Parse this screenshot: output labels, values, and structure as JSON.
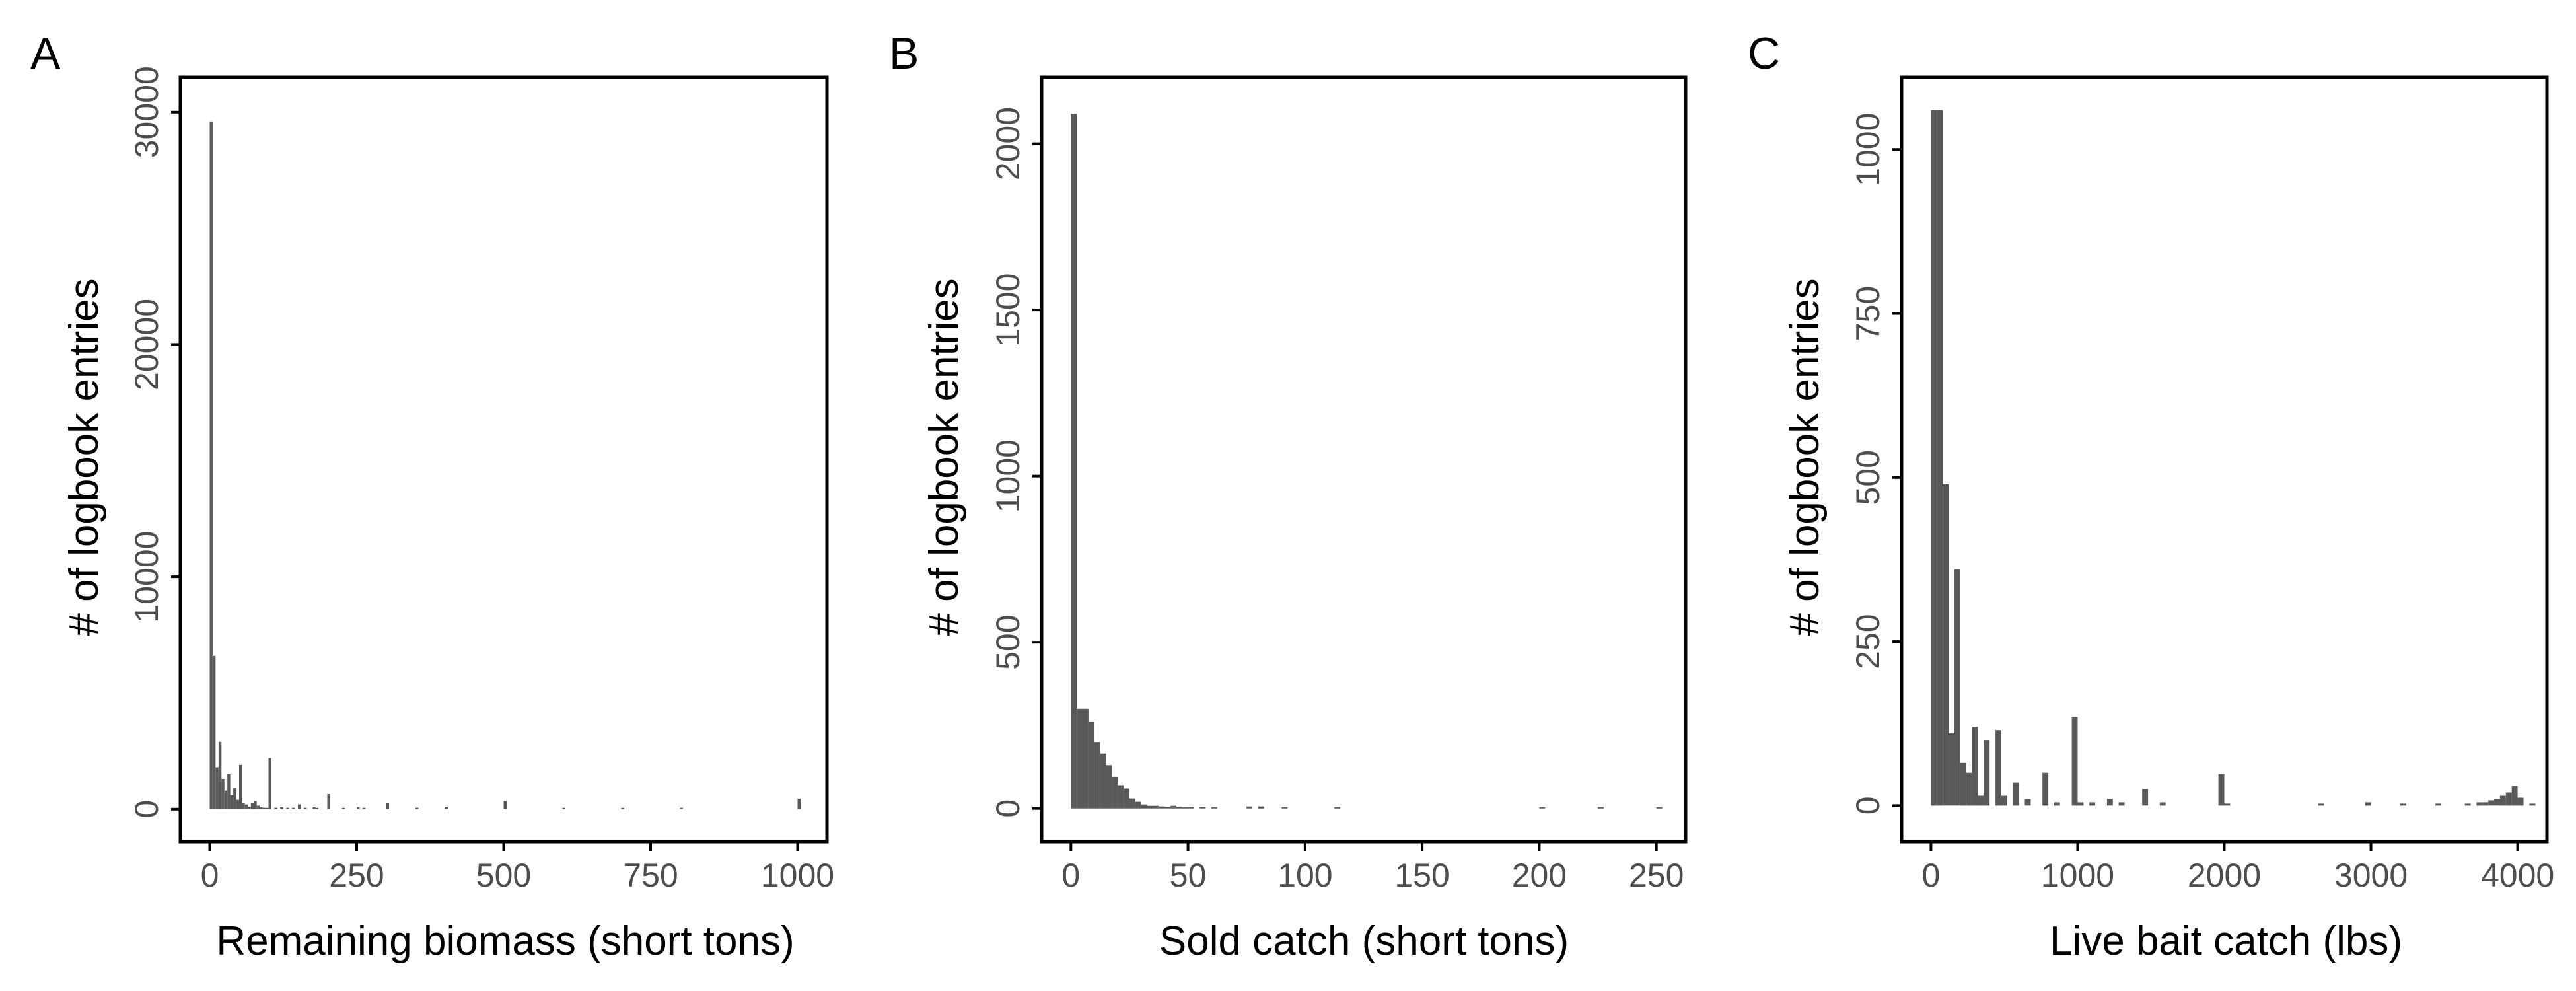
{
  "chart_data": [
    {
      "panel": "A",
      "type": "bar",
      "xlabel": "Remaining biomass (short tons)",
      "ylabel": "# of logbook entries",
      "xlim": [
        -50,
        1050
      ],
      "ylim": [
        -1400,
        31500
      ],
      "xticks": [
        0,
        250,
        500,
        750,
        1000
      ],
      "yticks": [
        0,
        10000,
        20000,
        30000
      ],
      "bin_width": 5,
      "bar_color": "#595959",
      "bins": [
        {
          "x": 0,
          "y": 29600
        },
        {
          "x": 5,
          "y": 6600
        },
        {
          "x": 10,
          "y": 1800
        },
        {
          "x": 15,
          "y": 2900
        },
        {
          "x": 20,
          "y": 1300
        },
        {
          "x": 25,
          "y": 800
        },
        {
          "x": 30,
          "y": 1500
        },
        {
          "x": 35,
          "y": 600
        },
        {
          "x": 40,
          "y": 900
        },
        {
          "x": 45,
          "y": 400
        },
        {
          "x": 50,
          "y": 1900
        },
        {
          "x": 55,
          "y": 250
        },
        {
          "x": 60,
          "y": 200
        },
        {
          "x": 65,
          "y": 100
        },
        {
          "x": 70,
          "y": 250
        },
        {
          "x": 75,
          "y": 350
        },
        {
          "x": 80,
          "y": 150
        },
        {
          "x": 85,
          "y": 80
        },
        {
          "x": 90,
          "y": 60
        },
        {
          "x": 95,
          "y": 40
        },
        {
          "x": 100,
          "y": 2200
        },
        {
          "x": 110,
          "y": 60
        },
        {
          "x": 120,
          "y": 80
        },
        {
          "x": 130,
          "y": 50
        },
        {
          "x": 140,
          "y": 40
        },
        {
          "x": 150,
          "y": 200
        },
        {
          "x": 160,
          "y": 30
        },
        {
          "x": 175,
          "y": 80
        },
        {
          "x": 180,
          "y": 30
        },
        {
          "x": 200,
          "y": 650
        },
        {
          "x": 225,
          "y": 40
        },
        {
          "x": 250,
          "y": 90
        },
        {
          "x": 260,
          "y": 30
        },
        {
          "x": 300,
          "y": 250
        },
        {
          "x": 350,
          "y": 60
        },
        {
          "x": 400,
          "y": 80
        },
        {
          "x": 500,
          "y": 350
        },
        {
          "x": 600,
          "y": 30
        },
        {
          "x": 700,
          "y": 40
        },
        {
          "x": 800,
          "y": 60
        },
        {
          "x": 1000,
          "y": 450
        }
      ]
    },
    {
      "panel": "B",
      "type": "bar",
      "xlabel": "Sold catch (short tons)",
      "ylabel": "# of logbook entries",
      "xlim": [
        -12.5,
        262.5
      ],
      "ylim": [
        -100,
        2200
      ],
      "xticks": [
        0,
        50,
        100,
        150,
        200,
        250
      ],
      "yticks": [
        0,
        500,
        1000,
        1500,
        2000
      ],
      "bin_width": 2.5,
      "bar_color": "#595959",
      "bins": [
        {
          "x": 0,
          "y": 2090
        },
        {
          "x": 2.5,
          "y": 300
        },
        {
          "x": 5,
          "y": 300
        },
        {
          "x": 7.5,
          "y": 260
        },
        {
          "x": 10,
          "y": 200
        },
        {
          "x": 12.5,
          "y": 165
        },
        {
          "x": 15,
          "y": 130
        },
        {
          "x": 17.5,
          "y": 95
        },
        {
          "x": 20,
          "y": 70
        },
        {
          "x": 22.5,
          "y": 60
        },
        {
          "x": 25,
          "y": 30
        },
        {
          "x": 27.5,
          "y": 20
        },
        {
          "x": 30,
          "y": 12
        },
        {
          "x": 32.5,
          "y": 8
        },
        {
          "x": 35,
          "y": 8
        },
        {
          "x": 37.5,
          "y": 6
        },
        {
          "x": 40,
          "y": 5
        },
        {
          "x": 42.5,
          "y": 8
        },
        {
          "x": 45,
          "y": 5
        },
        {
          "x": 47.5,
          "y": 4
        },
        {
          "x": 50,
          "y": 3
        },
        {
          "x": 55,
          "y": 2
        },
        {
          "x": 60,
          "y": 2
        },
        {
          "x": 75,
          "y": 6
        },
        {
          "x": 80,
          "y": 6
        },
        {
          "x": 90,
          "y": 3
        },
        {
          "x": 112.5,
          "y": 2
        },
        {
          "x": 200,
          "y": 3
        },
        {
          "x": 225,
          "y": 2
        },
        {
          "x": 250,
          "y": 2
        }
      ]
    },
    {
      "panel": "C",
      "type": "bar",
      "xlabel": "Live bait catch (lbs)",
      "ylabel": "# of logbook entries",
      "xlim": [
        -200,
        4200
      ],
      "ylim": [
        -55,
        1110
      ],
      "xticks": [
        0,
        1000,
        2000,
        3000,
        4000
      ],
      "yticks": [
        0,
        250,
        500,
        750,
        1000
      ],
      "bin_width": 40,
      "bar_color": "#595959",
      "bins": [
        {
          "x": 0,
          "y": 1060
        },
        {
          "x": 40,
          "y": 1060
        },
        {
          "x": 80,
          "y": 490
        },
        {
          "x": 120,
          "y": 110
        },
        {
          "x": 160,
          "y": 360
        },
        {
          "x": 200,
          "y": 65
        },
        {
          "x": 240,
          "y": 50
        },
        {
          "x": 280,
          "y": 120
        },
        {
          "x": 320,
          "y": 15
        },
        {
          "x": 360,
          "y": 100
        },
        {
          "x": 440,
          "y": 115
        },
        {
          "x": 480,
          "y": 15
        },
        {
          "x": 560,
          "y": 35
        },
        {
          "x": 640,
          "y": 10
        },
        {
          "x": 760,
          "y": 50
        },
        {
          "x": 840,
          "y": 5
        },
        {
          "x": 960,
          "y": 135
        },
        {
          "x": 1000,
          "y": 5
        },
        {
          "x": 1080,
          "y": 5
        },
        {
          "x": 1200,
          "y": 10
        },
        {
          "x": 1280,
          "y": 5
        },
        {
          "x": 1440,
          "y": 25
        },
        {
          "x": 1560,
          "y": 5
        },
        {
          "x": 1960,
          "y": 48
        },
        {
          "x": 2000,
          "y": 3
        },
        {
          "x": 2640,
          "y": 3
        },
        {
          "x": 2960,
          "y": 5
        },
        {
          "x": 3200,
          "y": 3
        },
        {
          "x": 3440,
          "y": 3
        },
        {
          "x": 3640,
          "y": 3
        },
        {
          "x": 3720,
          "y": 5
        },
        {
          "x": 3760,
          "y": 5
        },
        {
          "x": 3800,
          "y": 8
        },
        {
          "x": 3840,
          "y": 10
        },
        {
          "x": 3880,
          "y": 15
        },
        {
          "x": 3920,
          "y": 20
        },
        {
          "x": 3960,
          "y": 30
        },
        {
          "x": 4000,
          "y": 12
        },
        {
          "x": 4080,
          "y": 3
        }
      ]
    }
  ]
}
